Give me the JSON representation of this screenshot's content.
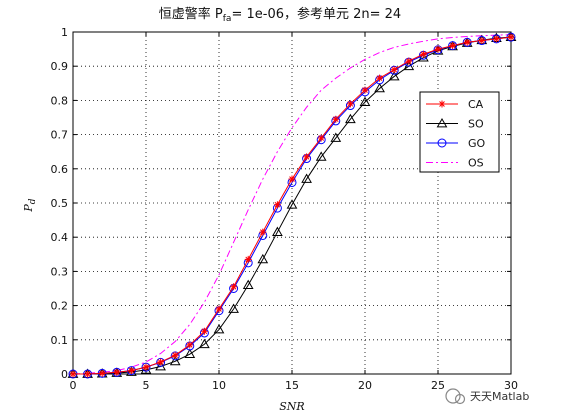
{
  "chart_data": {
    "type": "line",
    "title": "恒虚警率 P",
    "title_sub": "fa",
    "title_rest": "= 1e-06，参考单元 2n= 24",
    "xlabel": "SNR",
    "ylabel": "P",
    "ylabel_sub": "d",
    "xlim": [
      0,
      30
    ],
    "ylim": [
      0,
      1
    ],
    "xticks": [
      "0",
      "5",
      "10",
      "15",
      "20",
      "25",
      "30"
    ],
    "yticks": [
      "0",
      "0.1",
      "0.2",
      "0.3",
      "0.4",
      "0.5",
      "0.6",
      "0.7",
      "0.8",
      "0.9",
      "1"
    ],
    "grid": true,
    "legend_position": "right",
    "x": [
      0,
      1,
      2,
      3,
      4,
      5,
      6,
      7,
      8,
      9,
      10,
      11,
      12,
      13,
      14,
      15,
      16,
      17,
      18,
      19,
      20,
      21,
      22,
      23,
      24,
      25,
      26,
      27,
      28,
      29,
      30
    ],
    "series": [
      {
        "name": "CA",
        "color": "#ff0000",
        "marker": "asterisk",
        "dash": "solid",
        "values": [
          0.0,
          0.0,
          0.002,
          0.005,
          0.01,
          0.02,
          0.035,
          0.055,
          0.085,
          0.125,
          0.19,
          0.255,
          0.335,
          0.415,
          0.495,
          0.57,
          0.635,
          0.69,
          0.745,
          0.79,
          0.83,
          0.865,
          0.89,
          0.915,
          0.935,
          0.95,
          0.96,
          0.97,
          0.975,
          0.98,
          0.985
        ]
      },
      {
        "name": "SO",
        "color": "#000000",
        "marker": "triangle",
        "dash": "solid",
        "values": [
          0.0,
          0.0,
          0.001,
          0.003,
          0.006,
          0.012,
          0.022,
          0.037,
          0.058,
          0.087,
          0.13,
          0.19,
          0.26,
          0.335,
          0.415,
          0.495,
          0.57,
          0.635,
          0.69,
          0.745,
          0.795,
          0.835,
          0.87,
          0.9,
          0.925,
          0.945,
          0.958,
          0.968,
          0.976,
          0.982,
          0.985
        ]
      },
      {
        "name": "GO",
        "color": "#0000ff",
        "marker": "circle",
        "dash": "solid",
        "values": [
          0.0,
          0.0,
          0.002,
          0.005,
          0.01,
          0.02,
          0.034,
          0.053,
          0.082,
          0.12,
          0.185,
          0.25,
          0.325,
          0.405,
          0.485,
          0.56,
          0.63,
          0.685,
          0.74,
          0.785,
          0.825,
          0.86,
          0.888,
          0.912,
          0.932,
          0.948,
          0.96,
          0.97,
          0.975,
          0.98,
          0.985
        ]
      },
      {
        "name": "OS",
        "color": "#ff00ff",
        "marker": "none",
        "dash": "dashdot",
        "values": [
          0.0,
          0.002,
          0.005,
          0.01,
          0.02,
          0.035,
          0.06,
          0.095,
          0.145,
          0.21,
          0.29,
          0.385,
          0.48,
          0.57,
          0.65,
          0.72,
          0.78,
          0.83,
          0.865,
          0.895,
          0.92,
          0.94,
          0.955,
          0.965,
          0.973,
          0.98,
          0.984,
          0.987,
          0.989,
          0.991,
          0.992
        ]
      }
    ]
  },
  "watermark": "天天Matlab"
}
